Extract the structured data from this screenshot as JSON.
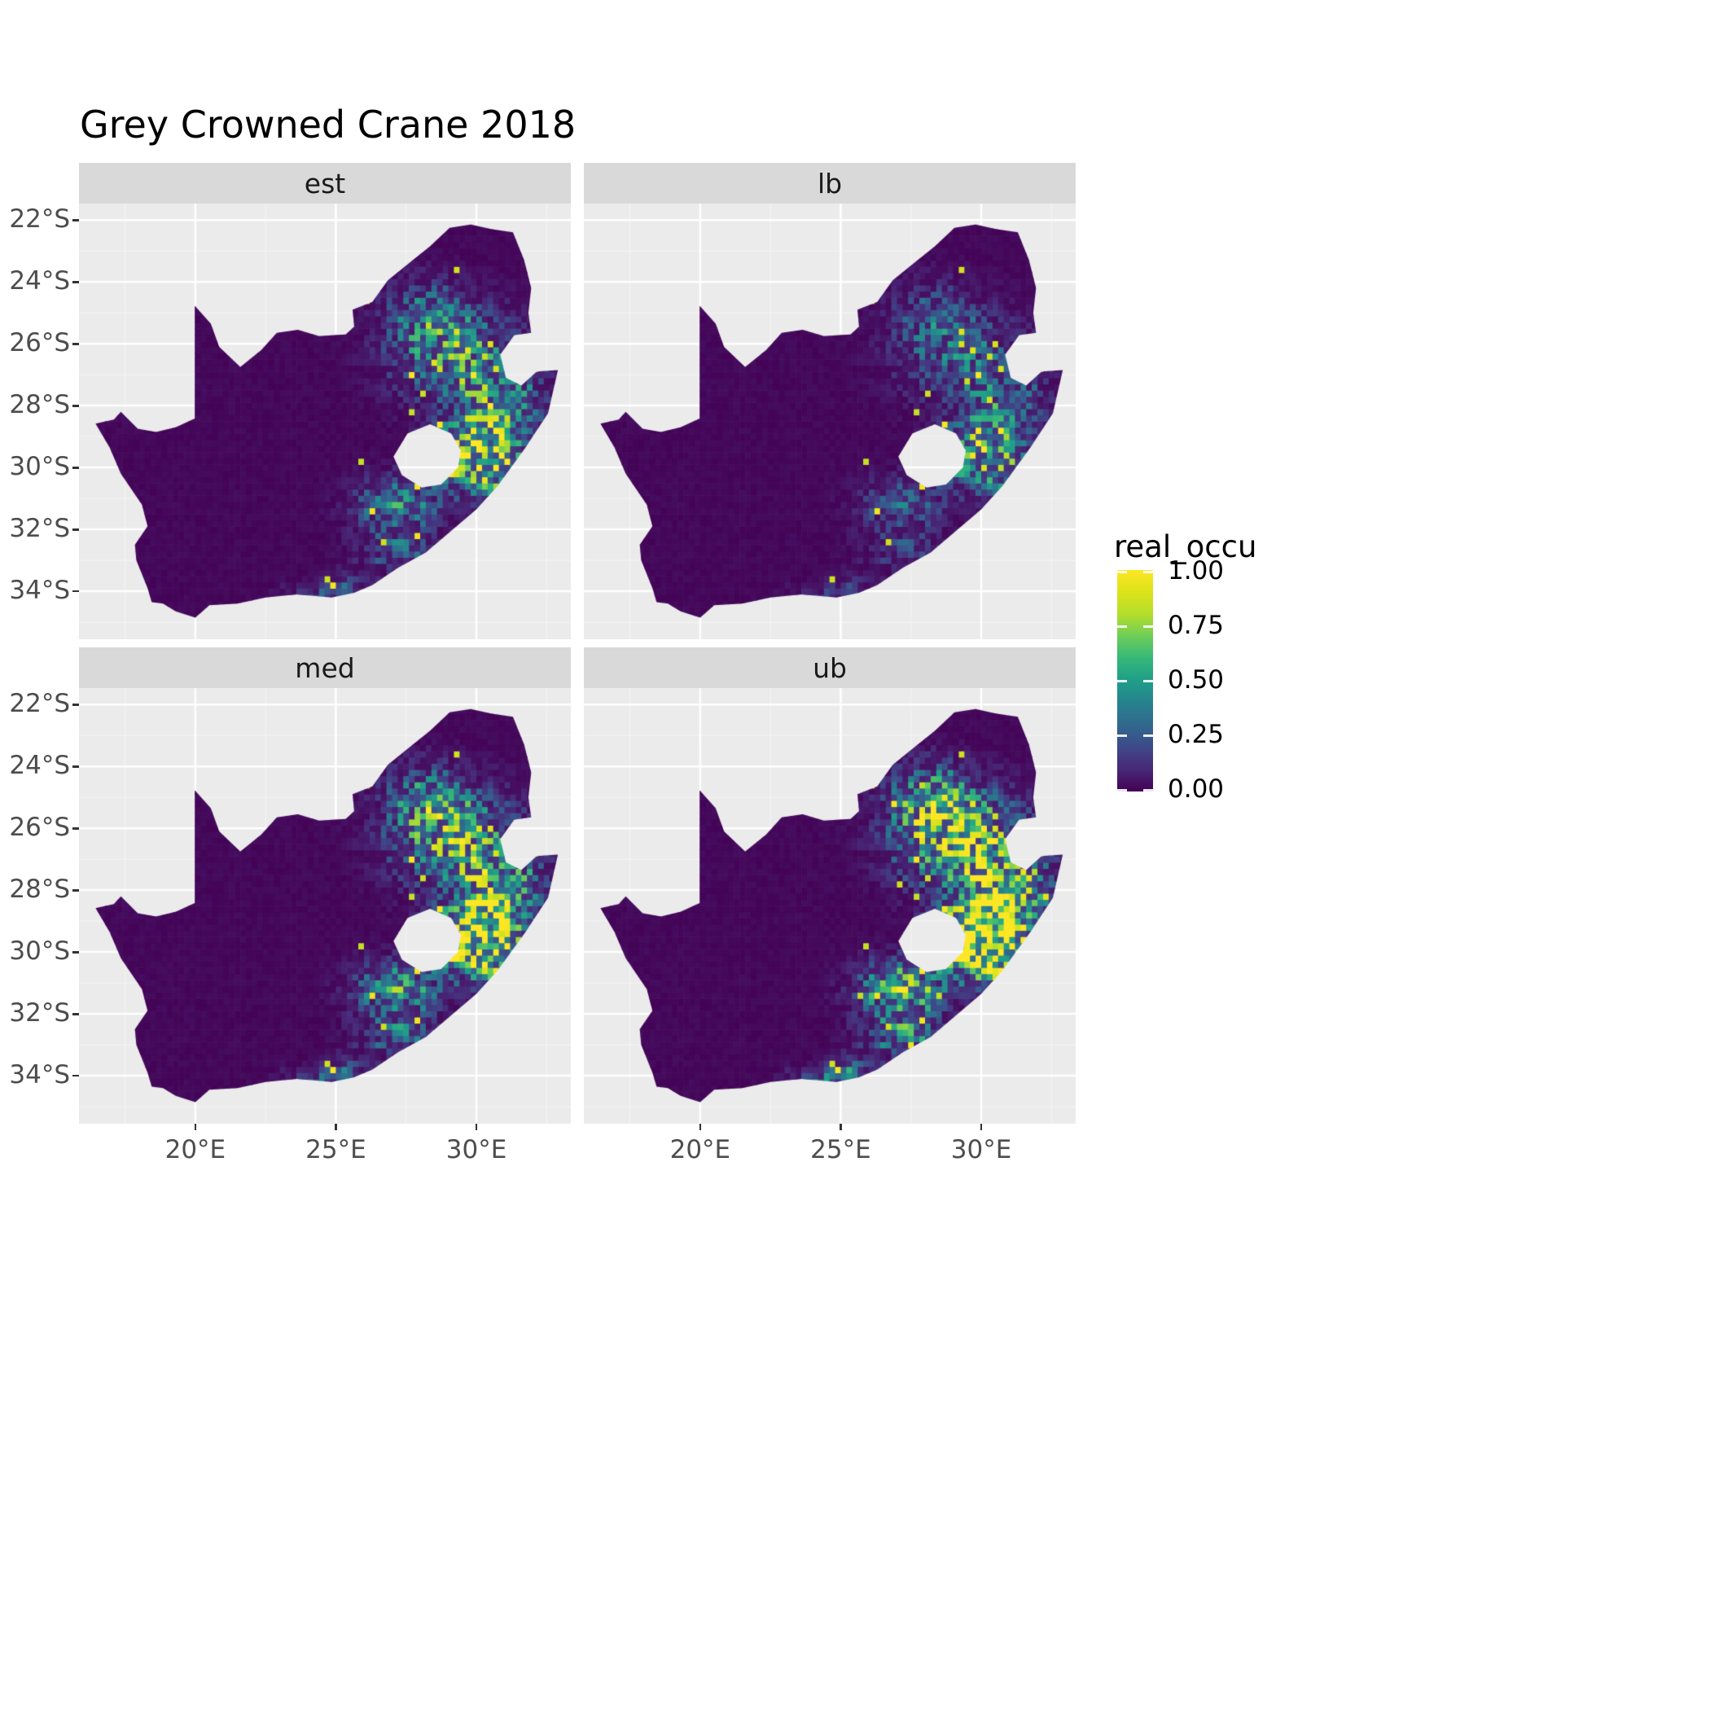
{
  "chart_data": {
    "type": "heatmap",
    "title": "Grey Crowned Crane 2018",
    "variable": "real_occu",
    "facets": [
      {
        "label": "est",
        "intensity": 1.0
      },
      {
        "label": "lb",
        "intensity": 0.65
      },
      {
        "label": "med",
        "intensity": 1.25
      },
      {
        "label": "ub",
        "intensity": 1.7
      }
    ],
    "x_axis": {
      "range": [
        15.86,
        33.36
      ],
      "ticks": [
        {
          "value": 20,
          "label": "20°E"
        },
        {
          "value": 25,
          "label": "25°E"
        },
        {
          "value": 30,
          "label": "30°E"
        }
      ],
      "minor": [
        17.5,
        22.5,
        27.5,
        32.5
      ]
    },
    "y_axis": {
      "range": [
        -35.55,
        -21.47
      ],
      "ticks": [
        {
          "value": -22,
          "label": "22°S"
        },
        {
          "value": -24,
          "label": "24°S"
        },
        {
          "value": -26,
          "label": "26°S"
        },
        {
          "value": -28,
          "label": "28°S"
        },
        {
          "value": -30,
          "label": "30°S"
        },
        {
          "value": -32,
          "label": "32°S"
        },
        {
          "value": -34,
          "label": "34°S"
        }
      ],
      "minor": [
        -23,
        -25,
        -27,
        -29,
        -31,
        -33,
        -35
      ]
    },
    "legend": {
      "title": "real_occu",
      "ticks": [
        {
          "value": 1.0,
          "label": "1.00"
        },
        {
          "value": 0.75,
          "label": "0.75"
        },
        {
          "value": 0.5,
          "label": "0.50"
        },
        {
          "value": 0.25,
          "label": "0.25"
        },
        {
          "value": 0.0,
          "label": "0.00"
        }
      ],
      "viridis_stops": [
        [
          0.0,
          "#440154"
        ],
        [
          0.1,
          "#482878"
        ],
        [
          0.2,
          "#3E4989"
        ],
        [
          0.3,
          "#31688E"
        ],
        [
          0.4,
          "#26828E"
        ],
        [
          0.5,
          "#1F9E89"
        ],
        [
          0.6,
          "#35B779"
        ],
        [
          0.7,
          "#6DCD59"
        ],
        [
          0.8,
          "#B4DE2C"
        ],
        [
          0.9,
          "#DCE319"
        ],
        [
          1.0,
          "#FDE725"
        ]
      ]
    },
    "colors": {
      "panel_bg": "#EBEBEB",
      "strip_bg": "#D9D9D9",
      "grid_major": "#FFFFFF",
      "axis_text": "#4D4D4D",
      "strip_text": "#1A1A1A",
      "tick_mark": "#333333",
      "base_fill": "#440154"
    },
    "map": {
      "outline": [
        [
          16.45,
          -28.58
        ],
        [
          17.1,
          -28.45
        ],
        [
          17.35,
          -28.2
        ],
        [
          17.95,
          -28.75
        ],
        [
          18.6,
          -28.85
        ],
        [
          19.3,
          -28.7
        ],
        [
          19.98,
          -28.42
        ],
        [
          19.98,
          -24.77
        ],
        [
          20.55,
          -25.35
        ],
        [
          20.85,
          -26.1
        ],
        [
          21.6,
          -26.75
        ],
        [
          22.35,
          -26.2
        ],
        [
          22.9,
          -25.65
        ],
        [
          23.65,
          -25.55
        ],
        [
          24.4,
          -25.75
        ],
        [
          25.35,
          -25.7
        ],
        [
          25.65,
          -25.45
        ],
        [
          25.6,
          -24.9
        ],
        [
          26.3,
          -24.65
        ],
        [
          26.85,
          -23.95
        ],
        [
          27.6,
          -23.4
        ],
        [
          28.35,
          -22.85
        ],
        [
          29.05,
          -22.25
        ],
        [
          29.8,
          -22.15
        ],
        [
          30.55,
          -22.3
        ],
        [
          31.3,
          -22.4
        ],
        [
          31.7,
          -23.3
        ],
        [
          31.95,
          -24.2
        ],
        [
          31.85,
          -25.0
        ],
        [
          31.95,
          -25.65
        ],
        [
          31.35,
          -25.72
        ],
        [
          30.85,
          -26.35
        ],
        [
          31.05,
          -27.1
        ],
        [
          31.6,
          -27.35
        ],
        [
          32.15,
          -26.9
        ],
        [
          32.9,
          -26.85
        ],
        [
          32.55,
          -28.25
        ],
        [
          31.75,
          -29.35
        ],
        [
          30.75,
          -30.6
        ],
        [
          30.0,
          -31.35
        ],
        [
          29.1,
          -32.05
        ],
        [
          28.2,
          -32.75
        ],
        [
          27.2,
          -33.25
        ],
        [
          26.3,
          -33.8
        ],
        [
          25.65,
          -34.05
        ],
        [
          24.85,
          -34.2
        ],
        [
          23.6,
          -34.1
        ],
        [
          22.5,
          -34.2
        ],
        [
          21.5,
          -34.4
        ],
        [
          20.5,
          -34.45
        ],
        [
          20.0,
          -34.85
        ],
        [
          19.3,
          -34.65
        ],
        [
          18.85,
          -34.4
        ],
        [
          18.45,
          -34.35
        ],
        [
          18.3,
          -33.9
        ],
        [
          17.9,
          -33.0
        ],
        [
          17.85,
          -32.5
        ],
        [
          18.3,
          -31.9
        ],
        [
          18.1,
          -31.2
        ],
        [
          17.35,
          -30.2
        ],
        [
          16.95,
          -29.35
        ]
      ],
      "lesotho": [
        [
          27.05,
          -29.65
        ],
        [
          27.55,
          -28.9
        ],
        [
          28.35,
          -28.6
        ],
        [
          29.1,
          -28.9
        ],
        [
          29.45,
          -29.45
        ],
        [
          29.35,
          -30.0
        ],
        [
          28.75,
          -30.55
        ],
        [
          28.05,
          -30.65
        ],
        [
          27.35,
          -30.25
        ]
      ]
    },
    "hotspots": [
      {
        "lon": 29.9,
        "lat": -29.6,
        "amp": 0.95,
        "sx": 0.9,
        "sy": 0.7
      },
      {
        "lon": 29.2,
        "lat": -26.3,
        "amp": 0.5,
        "sx": 1.4,
        "sy": 1.0
      },
      {
        "lon": 30.5,
        "lat": -28.3,
        "amp": 0.5,
        "sx": 0.8,
        "sy": 0.9
      },
      {
        "lon": 27.2,
        "lat": -31.2,
        "amp": 0.4,
        "sx": 1.0,
        "sy": 0.6
      },
      {
        "lon": 28.2,
        "lat": -25.0,
        "amp": 0.28,
        "sx": 0.9,
        "sy": 0.7
      },
      {
        "lon": 27.3,
        "lat": -32.7,
        "amp": 0.28,
        "sx": 0.9,
        "sy": 0.45
      },
      {
        "lon": 24.0,
        "lat": -34.2,
        "amp": 0.18,
        "sx": 0.6,
        "sy": 0.3
      },
      {
        "lon": 25.4,
        "lat": -33.9,
        "amp": 0.2,
        "sx": 0.6,
        "sy": 0.35
      },
      {
        "lon": 31.9,
        "lat": -27.9,
        "amp": 0.22,
        "sx": 0.5,
        "sy": 0.9
      },
      {
        "lon": 30.9,
        "lat": -30.3,
        "amp": 0.35,
        "sx": 0.5,
        "sy": 0.6
      }
    ],
    "raster": {
      "cell_deg": 0.2,
      "base": 0.004,
      "base_noise": 0.028,
      "speckle_rate": 0.09,
      "rare_rate": 0.0008
    }
  }
}
